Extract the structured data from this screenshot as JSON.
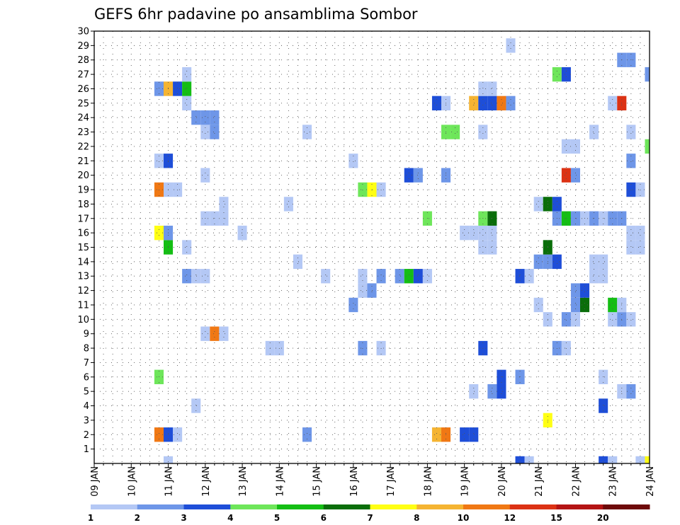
{
  "chart_data": {
    "type": "heatmap",
    "title": "GEFS 6hr padavine po ansamblima Sombor",
    "xlabel": "",
    "ylabel": "",
    "x_tick_labels": [
      "09 JAN",
      "10 JAN",
      "11 JAN",
      "12 JAN",
      "13 JAN",
      "14 JAN",
      "15 JAN",
      "16 JAN",
      "17 JAN",
      "18 JAN",
      "19 JAN",
      "20 JAN",
      "21 JAN",
      "22 JAN",
      "23 JAN",
      "24 JAN"
    ],
    "x_range_days": [
      9,
      24
    ],
    "y_range": [
      0,
      30
    ],
    "y_ticks": [
      1,
      2,
      3,
      4,
      5,
      6,
      7,
      8,
      9,
      10,
      11,
      12,
      13,
      14,
      15,
      16,
      17,
      18,
      19,
      20,
      21,
      22,
      23,
      24,
      25,
      26,
      27,
      28,
      29,
      30
    ],
    "grid": true,
    "colorbar": {
      "placement": "bottom",
      "labels": [
        "1",
        "2",
        "3",
        "4",
        "5",
        "6",
        "7",
        "8",
        "10",
        "12",
        "15",
        "20"
      ],
      "colors": [
        "#b4c8f5",
        "#6e96e8",
        "#1e4ed8",
        "#6ee65a",
        "#14be14",
        "#0a6e0a",
        "#ffff14",
        "#f5b432",
        "#f07814",
        "#dc3214",
        "#b41414",
        "#6e0a0a"
      ]
    },
    "cells": [
      {
        "day": 11.0,
        "member": 0,
        "level": 1
      },
      {
        "day": 20.5,
        "member": 0,
        "level": 3
      },
      {
        "day": 20.75,
        "member": 0,
        "level": 1
      },
      {
        "day": 22.75,
        "member": 0,
        "level": 3
      },
      {
        "day": 23.0,
        "member": 0,
        "level": 1
      },
      {
        "day": 23.75,
        "member": 0,
        "level": 1
      },
      {
        "day": 24.0,
        "member": 0,
        "level": 7
      },
      {
        "day": 10.75,
        "member": 2,
        "level": 9
      },
      {
        "day": 11.0,
        "member": 2,
        "level": 3
      },
      {
        "day": 11.25,
        "member": 2,
        "level": 1
      },
      {
        "day": 14.75,
        "member": 2,
        "level": 2
      },
      {
        "day": 18.25,
        "member": 2,
        "level": 8
      },
      {
        "day": 18.5,
        "member": 2,
        "level": 9
      },
      {
        "day": 19.0,
        "member": 2,
        "level": 3
      },
      {
        "day": 19.25,
        "member": 2,
        "level": 3
      },
      {
        "day": 21.25,
        "member": 3,
        "level": 7
      },
      {
        "day": 11.75,
        "member": 4,
        "level": 1
      },
      {
        "day": 22.75,
        "member": 4,
        "level": 3
      },
      {
        "day": 19.25,
        "member": 5,
        "level": 1
      },
      {
        "day": 19.75,
        "member": 5,
        "level": 2
      },
      {
        "day": 20.0,
        "member": 5,
        "level": 3
      },
      {
        "day": 23.25,
        "member": 5,
        "level": 1
      },
      {
        "day": 23.5,
        "member": 5,
        "level": 2
      },
      {
        "day": 10.75,
        "member": 6,
        "level": 4
      },
      {
        "day": 20.0,
        "member": 6,
        "level": 3
      },
      {
        "day": 20.5,
        "member": 6,
        "level": 2
      },
      {
        "day": 22.75,
        "member": 6,
        "level": 1
      },
      {
        "day": 13.75,
        "member": 8,
        "level": 1
      },
      {
        "day": 14.0,
        "member": 8,
        "level": 1
      },
      {
        "day": 16.25,
        "member": 8,
        "level": 2
      },
      {
        "day": 16.75,
        "member": 8,
        "level": 1
      },
      {
        "day": 19.5,
        "member": 8,
        "level": 3
      },
      {
        "day": 21.5,
        "member": 8,
        "level": 2
      },
      {
        "day": 21.75,
        "member": 8,
        "level": 1
      },
      {
        "day": 12.0,
        "member": 9,
        "level": 1
      },
      {
        "day": 12.25,
        "member": 9,
        "level": 9
      },
      {
        "day": 12.5,
        "member": 9,
        "level": 1
      },
      {
        "day": 21.25,
        "member": 10,
        "level": 1
      },
      {
        "day": 21.75,
        "member": 10,
        "level": 2
      },
      {
        "day": 22.0,
        "member": 10,
        "level": 1
      },
      {
        "day": 23.0,
        "member": 10,
        "level": 1
      },
      {
        "day": 23.25,
        "member": 10,
        "level": 2
      },
      {
        "day": 23.5,
        "member": 10,
        "level": 1
      },
      {
        "day": 16.0,
        "member": 11,
        "level": 2
      },
      {
        "day": 21.0,
        "member": 11,
        "level": 1
      },
      {
        "day": 22.0,
        "member": 11,
        "level": 2
      },
      {
        "day": 22.25,
        "member": 11,
        "level": 6
      },
      {
        "day": 23.0,
        "member": 11,
        "level": 5
      },
      {
        "day": 23.25,
        "member": 11,
        "level": 1
      },
      {
        "day": 16.25,
        "member": 12,
        "level": 1
      },
      {
        "day": 16.5,
        "member": 12,
        "level": 2
      },
      {
        "day": 22.0,
        "member": 12,
        "level": 2
      },
      {
        "day": 22.25,
        "member": 12,
        "level": 3
      },
      {
        "day": 11.5,
        "member": 13,
        "level": 2
      },
      {
        "day": 11.75,
        "member": 13,
        "level": 1
      },
      {
        "day": 12.0,
        "member": 13,
        "level": 1
      },
      {
        "day": 15.25,
        "member": 13,
        "level": 1
      },
      {
        "day": 16.25,
        "member": 13,
        "level": 1
      },
      {
        "day": 16.75,
        "member": 13,
        "level": 2
      },
      {
        "day": 17.25,
        "member": 13,
        "level": 2
      },
      {
        "day": 17.5,
        "member": 13,
        "level": 5
      },
      {
        "day": 17.75,
        "member": 13,
        "level": 3
      },
      {
        "day": 18.0,
        "member": 13,
        "level": 1
      },
      {
        "day": 20.5,
        "member": 13,
        "level": 3
      },
      {
        "day": 20.75,
        "member": 13,
        "level": 1
      },
      {
        "day": 22.5,
        "member": 13,
        "level": 1
      },
      {
        "day": 22.75,
        "member": 13,
        "level": 1
      },
      {
        "day": 14.5,
        "member": 14,
        "level": 1
      },
      {
        "day": 21.0,
        "member": 14,
        "level": 2
      },
      {
        "day": 21.25,
        "member": 14,
        "level": 2
      },
      {
        "day": 21.5,
        "member": 14,
        "level": 3
      },
      {
        "day": 22.5,
        "member": 14,
        "level": 1
      },
      {
        "day": 22.75,
        "member": 14,
        "level": 1
      },
      {
        "day": 11.0,
        "member": 15,
        "level": 5
      },
      {
        "day": 11.5,
        "member": 15,
        "level": 1
      },
      {
        "day": 19.5,
        "member": 15,
        "level": 1
      },
      {
        "day": 19.75,
        "member": 15,
        "level": 1
      },
      {
        "day": 21.25,
        "member": 15,
        "level": 6
      },
      {
        "day": 23.5,
        "member": 15,
        "level": 1
      },
      {
        "day": 23.75,
        "member": 15,
        "level": 1
      },
      {
        "day": 10.75,
        "member": 16,
        "level": 7
      },
      {
        "day": 11.0,
        "member": 16,
        "level": 2
      },
      {
        "day": 13.0,
        "member": 16,
        "level": 1
      },
      {
        "day": 19.0,
        "member": 16,
        "level": 1
      },
      {
        "day": 19.25,
        "member": 16,
        "level": 1
      },
      {
        "day": 19.5,
        "member": 16,
        "level": 1
      },
      {
        "day": 19.75,
        "member": 16,
        "level": 1
      },
      {
        "day": 23.5,
        "member": 16,
        "level": 1
      },
      {
        "day": 23.75,
        "member": 16,
        "level": 1
      },
      {
        "day": 12.0,
        "member": 17,
        "level": 1
      },
      {
        "day": 12.25,
        "member": 17,
        "level": 1
      },
      {
        "day": 12.5,
        "member": 17,
        "level": 1
      },
      {
        "day": 18.0,
        "member": 17,
        "level": 4
      },
      {
        "day": 19.5,
        "member": 17,
        "level": 4
      },
      {
        "day": 19.75,
        "member": 17,
        "level": 6
      },
      {
        "day": 21.5,
        "member": 17,
        "level": 2
      },
      {
        "day": 21.75,
        "member": 17,
        "level": 5
      },
      {
        "day": 22.0,
        "member": 17,
        "level": 2
      },
      {
        "day": 22.25,
        "member": 17,
        "level": 1
      },
      {
        "day": 22.5,
        "member": 17,
        "level": 2
      },
      {
        "day": 22.75,
        "member": 17,
        "level": 1
      },
      {
        "day": 23.0,
        "member": 17,
        "level": 2
      },
      {
        "day": 23.25,
        "member": 17,
        "level": 2
      },
      {
        "day": 12.5,
        "member": 18,
        "level": 1
      },
      {
        "day": 14.25,
        "member": 18,
        "level": 1
      },
      {
        "day": 21.0,
        "member": 18,
        "level": 1
      },
      {
        "day": 21.25,
        "member": 18,
        "level": 6
      },
      {
        "day": 21.5,
        "member": 18,
        "level": 3
      },
      {
        "day": 10.75,
        "member": 19,
        "level": 9
      },
      {
        "day": 11.0,
        "member": 19,
        "level": 1
      },
      {
        "day": 11.25,
        "member": 19,
        "level": 1
      },
      {
        "day": 16.25,
        "member": 19,
        "level": 4
      },
      {
        "day": 16.5,
        "member": 19,
        "level": 7
      },
      {
        "day": 16.75,
        "member": 19,
        "level": 1
      },
      {
        "day": 23.5,
        "member": 19,
        "level": 3
      },
      {
        "day": 23.75,
        "member": 19,
        "level": 1
      },
      {
        "day": 12.0,
        "member": 20,
        "level": 1
      },
      {
        "day": 17.5,
        "member": 20,
        "level": 3
      },
      {
        "day": 17.75,
        "member": 20,
        "level": 2
      },
      {
        "day": 18.5,
        "member": 20,
        "level": 2
      },
      {
        "day": 21.75,
        "member": 20,
        "level": 10
      },
      {
        "day": 22.0,
        "member": 20,
        "level": 2
      },
      {
        "day": 10.75,
        "member": 21,
        "level": 1
      },
      {
        "day": 11.0,
        "member": 21,
        "level": 3
      },
      {
        "day": 16.0,
        "member": 21,
        "level": 1
      },
      {
        "day": 23.5,
        "member": 21,
        "level": 2
      },
      {
        "day": 21.75,
        "member": 22,
        "level": 1
      },
      {
        "day": 22.0,
        "member": 22,
        "level": 1
      },
      {
        "day": 24.0,
        "member": 22,
        "level": 4
      },
      {
        "day": 12.0,
        "member": 23,
        "level": 1
      },
      {
        "day": 12.25,
        "member": 23,
        "level": 2
      },
      {
        "day": 14.75,
        "member": 23,
        "level": 1
      },
      {
        "day": 18.5,
        "member": 23,
        "level": 4
      },
      {
        "day": 18.75,
        "member": 23,
        "level": 4
      },
      {
        "day": 19.5,
        "member": 23,
        "level": 1
      },
      {
        "day": 22.5,
        "member": 23,
        "level": 1
      },
      {
        "day": 23.5,
        "member": 23,
        "level": 1
      },
      {
        "day": 11.75,
        "member": 24,
        "level": 2
      },
      {
        "day": 12.0,
        "member": 24,
        "level": 2
      },
      {
        "day": 12.25,
        "member": 24,
        "level": 2
      },
      {
        "day": 11.5,
        "member": 25,
        "level": 1
      },
      {
        "day": 18.25,
        "member": 25,
        "level": 3
      },
      {
        "day": 18.5,
        "member": 25,
        "level": 1
      },
      {
        "day": 19.25,
        "member": 25,
        "level": 8
      },
      {
        "day": 19.5,
        "member": 25,
        "level": 3
      },
      {
        "day": 19.75,
        "member": 25,
        "level": 3
      },
      {
        "day": 20.0,
        "member": 25,
        "level": 9
      },
      {
        "day": 20.25,
        "member": 25,
        "level": 2
      },
      {
        "day": 23.0,
        "member": 25,
        "level": 1
      },
      {
        "day": 23.25,
        "member": 25,
        "level": 10
      },
      {
        "day": 10.75,
        "member": 26,
        "level": 2
      },
      {
        "day": 11.0,
        "member": 26,
        "level": 8
      },
      {
        "day": 11.25,
        "member": 26,
        "level": 3
      },
      {
        "day": 11.5,
        "member": 26,
        "level": 5
      },
      {
        "day": 19.5,
        "member": 26,
        "level": 1
      },
      {
        "day": 19.75,
        "member": 26,
        "level": 1
      },
      {
        "day": 11.5,
        "member": 27,
        "level": 1
      },
      {
        "day": 21.5,
        "member": 27,
        "level": 4
      },
      {
        "day": 21.75,
        "member": 27,
        "level": 3
      },
      {
        "day": 24.0,
        "member": 27,
        "level": 2
      },
      {
        "day": 23.25,
        "member": 28,
        "level": 2
      },
      {
        "day": 23.5,
        "member": 28,
        "level": 2
      },
      {
        "day": 20.25,
        "member": 29,
        "level": 1
      }
    ]
  }
}
